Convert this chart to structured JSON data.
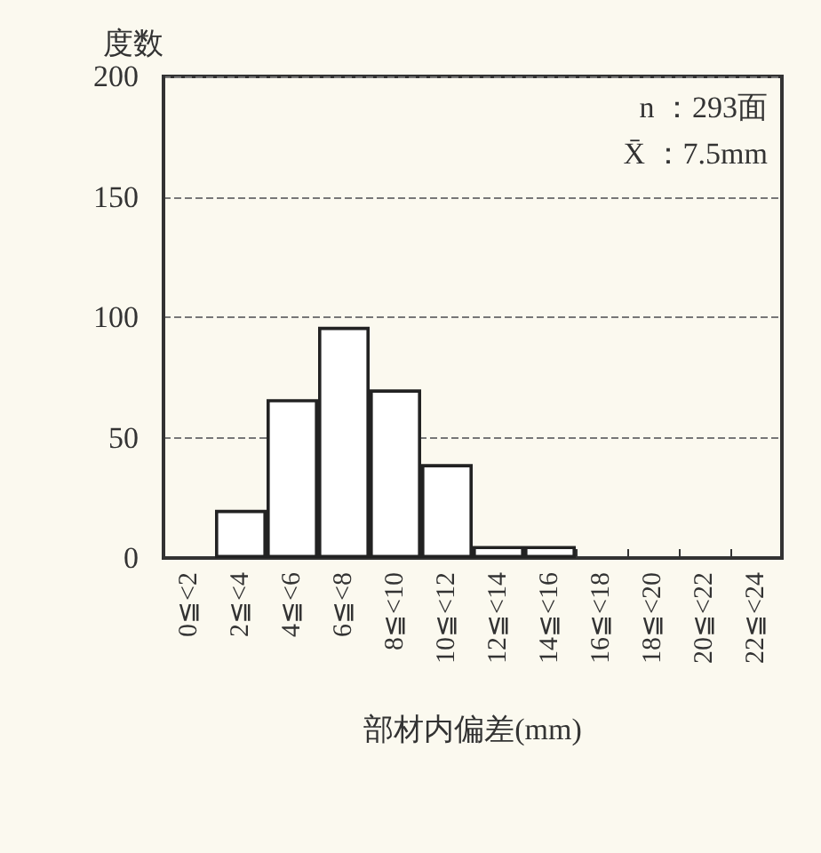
{
  "chart_data": {
    "type": "bar",
    "categories": [
      "0≦<2",
      "2≦<4",
      "4≦<6",
      "6≦<8",
      "8≦<10",
      "10≦<12",
      "12≦<14",
      "14≦<16",
      "16≦<18",
      "18≦<20",
      "20≦<22",
      "22≦<24"
    ],
    "values": [
      0,
      20,
      66,
      96,
      70,
      39,
      5,
      5,
      0,
      0,
      0,
      0
    ],
    "color": "#ffffff",
    "ylabel": "度数",
    "xlabel": "部材内偏差(mm)",
    "ylim": [
      0,
      200
    ],
    "yticks": [
      0,
      50,
      100,
      150,
      200
    ],
    "grid": "y",
    "annotations": [
      "n ：293面",
      "X̄ ：7.5mm"
    ]
  }
}
